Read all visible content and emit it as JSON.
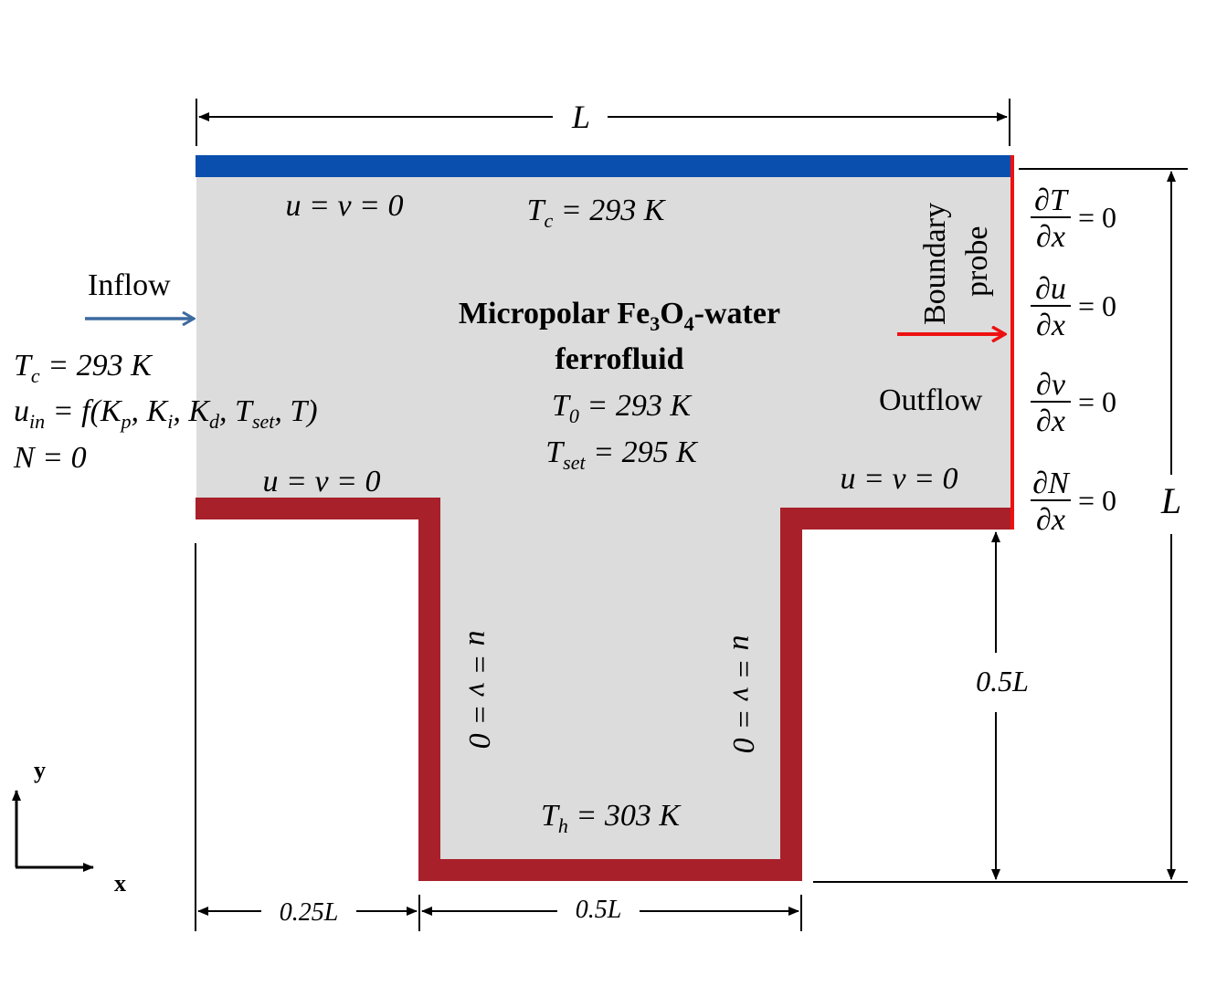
{
  "colors": {
    "fluid": "#dcdcdc",
    "cold_wall": "#0b4fae",
    "hot_wall": "#a8202a",
    "probe": "#ee1111",
    "inflow_arrow": "#3c6aa0",
    "text": "#000000"
  },
  "labels": {
    "top_width": "L",
    "right_height": "L",
    "stem_height": "0.5L",
    "left_offset": "0.25L",
    "stem_width": "0.5L",
    "inflow": "Inflow",
    "outflow": "Outflow",
    "boundary_probe_line1": "Boundary",
    "boundary_probe_line2": "probe",
    "title_line1_a": "Micropolar Fe",
    "title_sub_3": "3",
    "title_line1_b": "O",
    "title_sub_4": "4",
    "title_line1_c": "-water",
    "title_line2": "ferrofluid",
    "axis_y": "y",
    "axis_x": "x"
  },
  "conditions": {
    "top_velocity": "u = v = 0",
    "top_temp_T": "T",
    "top_temp_sub": "c",
    "top_temp_val": " = 293 K",
    "left_temp_T": "T",
    "left_temp_sub": "c",
    "left_temp_val": " = 293 K",
    "uin_u": "u",
    "uin_sub": "in",
    "uin_rest_1": " = f(K",
    "uin_kp_sub": "p",
    "uin_rest_2": ", K",
    "uin_ki_sub": "i",
    "uin_rest_3": ", K",
    "uin_kd_sub": "d",
    "uin_rest_4": ", T",
    "uin_tset_sub": "set",
    "uin_rest_5": ", T)",
    "left_N": "N = 0",
    "t0_T": "T",
    "t0_sub": "0",
    "t0_val": " = 293 K",
    "tset_T": "T",
    "tset_sub": "set",
    "tset_val": " = 295 K",
    "bottom_left_velocity": "u = v = 0",
    "bottom_right_velocity": "u = v = 0",
    "stem_left_velocity": "u = v = 0",
    "stem_right_velocity": "u = v = 0",
    "th_T": "T",
    "th_sub": "h",
    "th_val": " = 303 K"
  },
  "outflow_conditions": [
    {
      "var": "T",
      "eq": "= 0"
    },
    {
      "var": "u",
      "eq": "= 0"
    },
    {
      "var": "v",
      "eq": "= 0"
    },
    {
      "var": "N",
      "eq": "= 0"
    }
  ],
  "partial_symbol": "∂",
  "denominator_var": "x"
}
